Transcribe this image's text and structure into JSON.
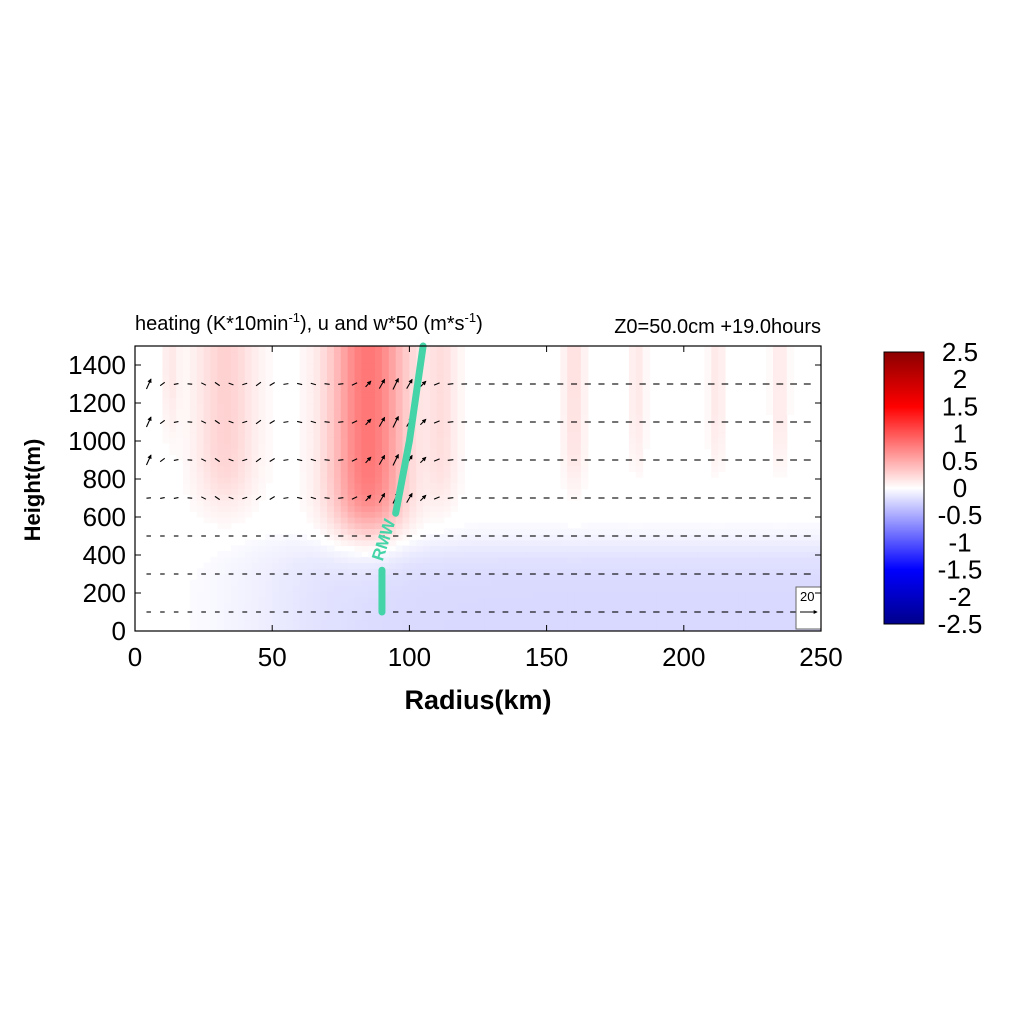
{
  "title": {
    "main_prefix": "heating (K*10min",
    "main_sup1": "-1",
    "main_mid": "), u and w*50 (m*s",
    "main_sup2": "-1",
    "main_suffix": ")",
    "right": "Z0=50.0cm  +19.0hours"
  },
  "chart_data": {
    "type": "heatmap",
    "overlay": "vector field (u, w*50)",
    "xlabel": "Radius(km)",
    "ylabel": "Height(m)",
    "xlim": [
      0,
      250
    ],
    "ylim": [
      0,
      1500
    ],
    "xticks": [
      "0",
      "50",
      "100",
      "150",
      "200",
      "250"
    ],
    "yticks": [
      "0",
      "200",
      "400",
      "600",
      "800",
      "1000",
      "1200",
      "1400"
    ],
    "colorbar": {
      "min": -2.5,
      "max": 2.5,
      "ticks": [
        "2.5",
        "2",
        "1.5",
        "1",
        "0.5",
        "0",
        "-0.5",
        "-1",
        "-1.5",
        "-2",
        "-2.5"
      ],
      "colors": [
        "#00008b",
        "#0000ff",
        "#8080ff",
        "#ffffff",
        "#ff8080",
        "#ff0000",
        "#8b0000"
      ]
    },
    "heating_features": [
      {
        "r_center": 85,
        "r_width": 14,
        "z_bottom": 550,
        "amplitude": 0.9
      },
      {
        "r_center": 33,
        "r_width": 11,
        "z_bottom": 700,
        "amplitude": 0.3
      },
      {
        "r_center": 112,
        "r_width": 6,
        "z_bottom": 700,
        "amplitude": 0.2
      },
      {
        "r_center": 160,
        "r_width": 4,
        "z_bottom": 800,
        "amplitude": 0.2
      },
      {
        "r_center": 183,
        "r_width": 3,
        "z_bottom": 900,
        "amplitude": 0.15
      },
      {
        "r_center": 212,
        "r_width": 3,
        "z_bottom": 900,
        "amplitude": 0.15
      },
      {
        "r_center": 235,
        "r_width": 3,
        "z_bottom": 900,
        "amplitude": 0.15
      },
      {
        "r_center": 13,
        "r_width": 3,
        "z_bottom": 1100,
        "amplitude": 0.15
      }
    ],
    "cooling_layer": {
      "z_top": 450,
      "amplitude": -0.25,
      "r_start": 50
    },
    "vector_levels_m": [
      100,
      300,
      500,
      700,
      900,
      1100,
      1300
    ],
    "vector_r_step_km": 5,
    "rmw": {
      "label": "RMW",
      "points": [
        [
          90,
          100
        ],
        [
          90,
          320
        ],
        [
          95,
          620
        ],
        [
          100,
          1000
        ],
        [
          105,
          1500
        ]
      ]
    },
    "reference_vector": {
      "label": "20"
    }
  }
}
